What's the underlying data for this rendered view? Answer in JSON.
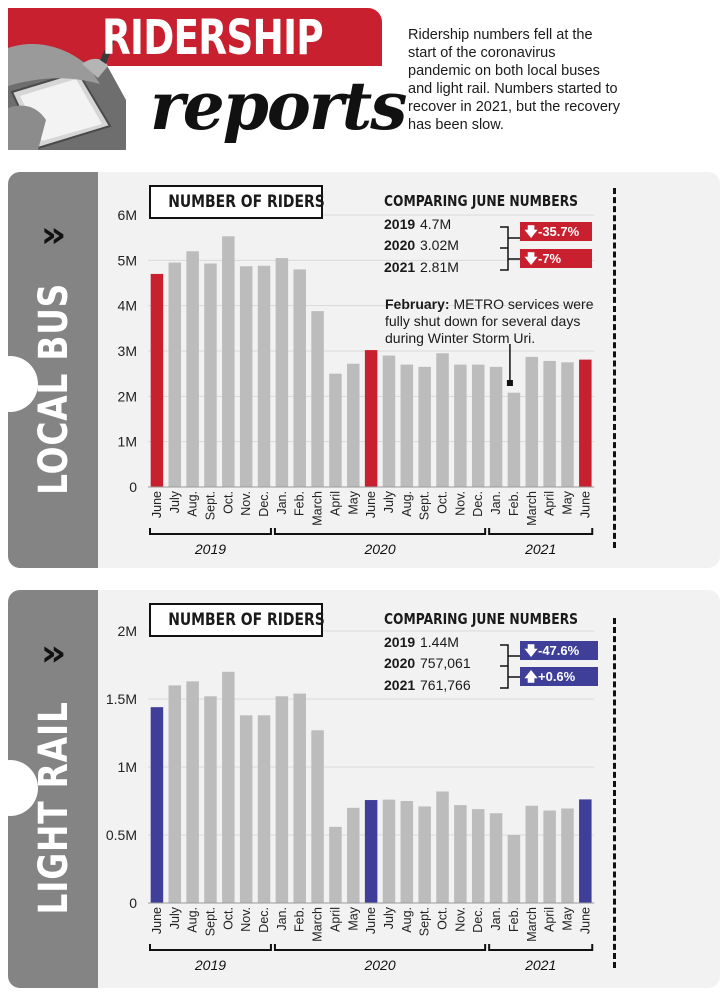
{
  "header": {
    "title_main": "RIDERSHIP",
    "title_sub": "reports",
    "intro": "Ridership numbers fell at the start of the coronavirus pandemic on both local buses and light rail. Numbers started to recover in 2021, but the recovery has been slow."
  },
  "colors": {
    "accent_red": "#c8202e",
    "accent_blue": "#3f3f9a",
    "bar_gray": "#bcbcbc",
    "panel_bg": "#f2f2f2",
    "tab_gray": "#848484"
  },
  "panels": [
    {
      "side_label": "LOCAL BUS",
      "chevron": "»",
      "chart_title": "NUMBER OF RIDERS",
      "comparison": {
        "heading": "COMPARING JUNE NUMBERS",
        "rows": [
          {
            "year": "2019",
            "value": "4.7M"
          },
          {
            "year": "2020",
            "value": "3.02M"
          },
          {
            "year": "2021",
            "value": "2.81M"
          }
        ],
        "changes": [
          {
            "direction": "down",
            "label": "-35.7%"
          },
          {
            "direction": "down",
            "label": "-7%"
          }
        ]
      },
      "annotation": {
        "bold": "February:",
        "text": " METRO services were fully shut down for several days during Winter Storm Uri."
      }
    },
    {
      "side_label": "LIGHT RAIL",
      "chevron": "»",
      "chart_title": "NUMBER OF RIDERS",
      "comparison": {
        "heading": "COMPARING JUNE NUMBERS",
        "rows": [
          {
            "year": "2019",
            "value": "1.44M"
          },
          {
            "year": "2020",
            "value": "757,061"
          },
          {
            "year": "2021",
            "value": "761,766"
          }
        ],
        "changes": [
          {
            "direction": "down",
            "label": "-47.6%"
          },
          {
            "direction": "up",
            "label": "+0.6%"
          }
        ]
      }
    }
  ],
  "chart_data": [
    {
      "type": "bar",
      "title": "NUMBER OF RIDERS",
      "categories": [
        "June",
        "July",
        "Aug.",
        "Sept.",
        "Oct.",
        "Nov.",
        "Dec.",
        "Jan.",
        "Feb.",
        "March",
        "April",
        "May",
        "June",
        "July",
        "Aug.",
        "Sept.",
        "Oct.",
        "Nov.",
        "Dec.",
        "Jan.",
        "Feb.",
        "March",
        "April",
        "May",
        "June"
      ],
      "values": [
        4700000,
        4950000,
        5200000,
        4930000,
        5530000,
        4870000,
        4880000,
        5050000,
        4800000,
        3880000,
        2500000,
        2720000,
        3020000,
        2900000,
        2700000,
        2650000,
        2950000,
        2700000,
        2700000,
        2650000,
        2080000,
        2870000,
        2780000,
        2750000,
        2810000
      ],
      "highlight_indices": [
        0,
        12,
        24
      ],
      "highlight_color": "#c8202e",
      "year_groups": [
        {
          "label": "2019",
          "start": 0,
          "end": 6
        },
        {
          "label": "2020",
          "start": 7,
          "end": 18
        },
        {
          "label": "2021",
          "start": 19,
          "end": 24
        }
      ],
      "y_ticks": [
        0,
        1000000,
        2000000,
        3000000,
        4000000,
        5000000,
        6000000
      ],
      "y_tick_labels": [
        "0",
        "1M",
        "2M",
        "3M",
        "4M",
        "5M",
        "6M"
      ],
      "ylim": [
        0,
        6000000
      ],
      "grid": true,
      "xlabel": "",
      "ylabel": ""
    },
    {
      "type": "bar",
      "title": "NUMBER OF RIDERS",
      "categories": [
        "June",
        "July",
        "Aug.",
        "Sept.",
        "Oct.",
        "Nov.",
        "Dec.",
        "Jan.",
        "Feb.",
        "March",
        "April",
        "May",
        "June",
        "July",
        "Aug.",
        "Sept.",
        "Oct.",
        "Nov.",
        "Dec.",
        "Jan.",
        "Feb.",
        "March",
        "April",
        "May",
        "June"
      ],
      "values": [
        1440000,
        1600000,
        1630000,
        1520000,
        1700000,
        1380000,
        1380000,
        1520000,
        1540000,
        1270000,
        560000,
        700000,
        757061,
        760000,
        750000,
        710000,
        820000,
        720000,
        690000,
        660000,
        500000,
        715000,
        680000,
        695000,
        761766
      ],
      "highlight_indices": [
        0,
        12,
        24
      ],
      "highlight_color": "#3f3f9a",
      "year_groups": [
        {
          "label": "2019",
          "start": 0,
          "end": 6
        },
        {
          "label": "2020",
          "start": 7,
          "end": 18
        },
        {
          "label": "2021",
          "start": 19,
          "end": 24
        }
      ],
      "y_ticks": [
        0,
        500000,
        1000000,
        1500000,
        2000000
      ],
      "y_tick_labels": [
        "0",
        "0.5M",
        "1M",
        "1.5M",
        "2M"
      ],
      "ylim": [
        0,
        2000000
      ],
      "grid": true,
      "xlabel": "",
      "ylabel": ""
    }
  ]
}
